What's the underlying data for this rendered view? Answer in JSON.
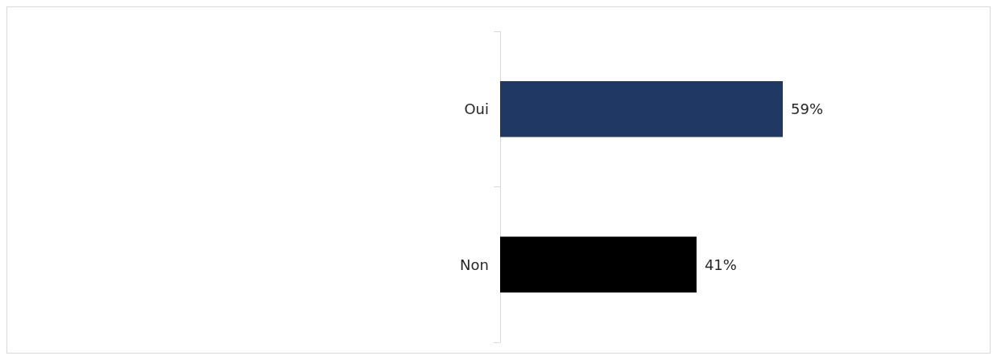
{
  "chart_data": {
    "type": "bar",
    "orientation": "horizontal",
    "categories": [
      "Oui",
      "Non"
    ],
    "values": [
      59,
      41
    ],
    "colors": [
      "#203864",
      "#000000"
    ],
    "value_labels": [
      "59%",
      "41%"
    ]
  }
}
